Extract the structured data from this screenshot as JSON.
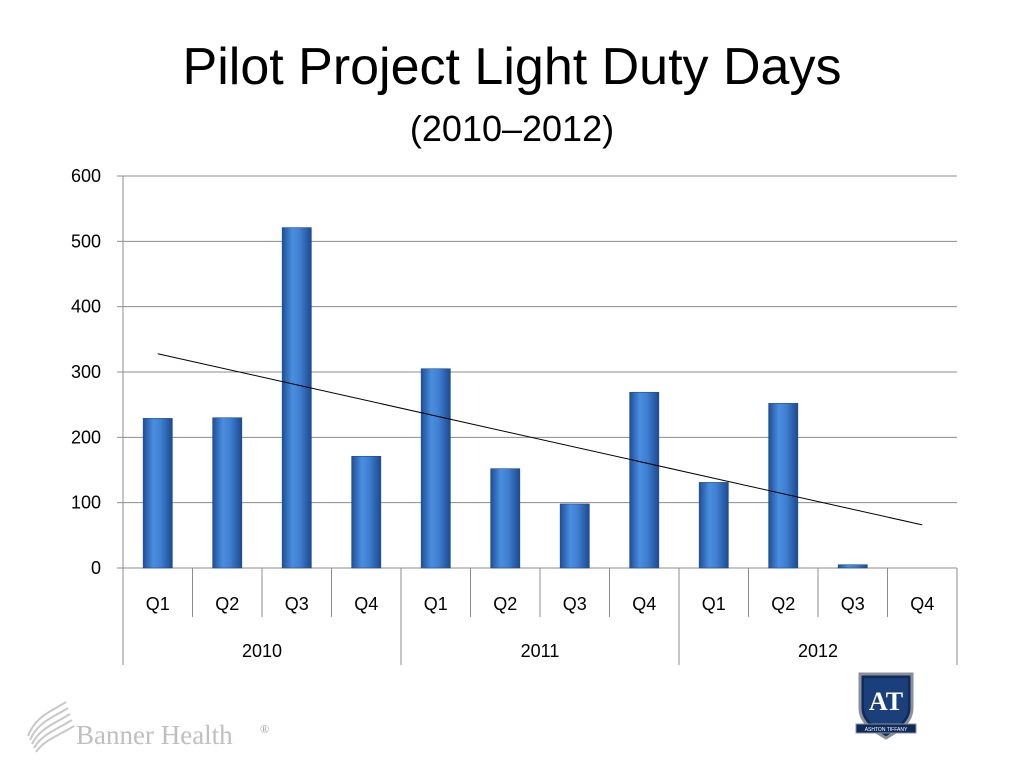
{
  "slide": {
    "title": "Pilot Project Light Duty Days",
    "subtitle": "(2010–2012)"
  },
  "chart_data": {
    "type": "bar",
    "title": "",
    "xlabel": "",
    "ylabel": "",
    "categories": [
      "Q1",
      "Q2",
      "Q3",
      "Q4",
      "Q1",
      "Q2",
      "Q3",
      "Q4",
      "Q1",
      "Q2",
      "Q3",
      "Q4"
    ],
    "groups": [
      {
        "label": "2010",
        "span": 4
      },
      {
        "label": "2011",
        "span": 4
      },
      {
        "label": "2012",
        "span": 4
      }
    ],
    "values": [
      229,
      230,
      521,
      171,
      305,
      152,
      98,
      269,
      131,
      252,
      5,
      0
    ],
    "ylim": [
      0,
      600
    ],
    "yticks": [
      0,
      100,
      200,
      300,
      400,
      500,
      600
    ],
    "trendline": {
      "type": "linear",
      "start": 328,
      "end": 66
    },
    "grid": true,
    "bar_color": "#3f7fd2"
  },
  "footer": {
    "brand": "Banner Health",
    "brand_mark": "®",
    "shield_letters": "AT",
    "shield_caption": "ASHTON TIFFANY"
  }
}
